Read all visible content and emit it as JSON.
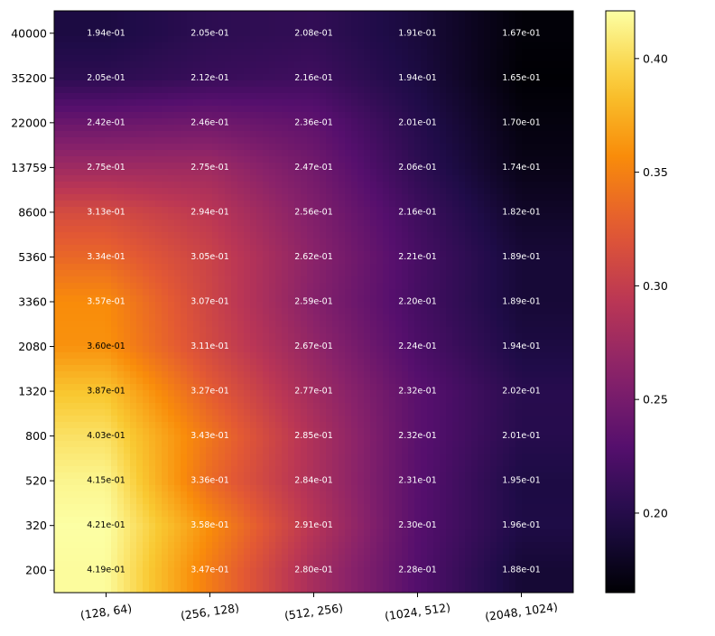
{
  "chart_data": {
    "type": "heatmap",
    "title": "",
    "xlabel": "",
    "ylabel": "",
    "x_categories": [
      "(128, 64)",
      "(256, 128)",
      "(512, 256)",
      "(1024, 512)",
      "(2048, 1024)"
    ],
    "y_categories": [
      "40000",
      "35200",
      "22000",
      "13759",
      "8600",
      "5360",
      "3360",
      "2080",
      "1320",
      "800",
      "520",
      "320",
      "200"
    ],
    "values": [
      [
        0.194,
        0.205,
        0.208,
        0.191,
        0.167
      ],
      [
        0.205,
        0.212,
        0.216,
        0.194,
        0.165
      ],
      [
        0.242,
        0.246,
        0.236,
        0.201,
        0.17
      ],
      [
        0.275,
        0.275,
        0.247,
        0.206,
        0.174
      ],
      [
        0.313,
        0.294,
        0.256,
        0.216,
        0.182
      ],
      [
        0.334,
        0.305,
        0.262,
        0.221,
        0.189
      ],
      [
        0.357,
        0.307,
        0.259,
        0.22,
        0.189
      ],
      [
        0.36,
        0.311,
        0.267,
        0.224,
        0.194
      ],
      [
        0.387,
        0.327,
        0.277,
        0.232,
        0.202
      ],
      [
        0.403,
        0.343,
        0.285,
        0.232,
        0.201
      ],
      [
        0.415,
        0.336,
        0.284,
        0.231,
        0.195
      ],
      [
        0.421,
        0.358,
        0.291,
        0.23,
        0.196
      ],
      [
        0.419,
        0.347,
        0.28,
        0.228,
        0.188
      ]
    ],
    "cell_labels": [
      [
        "1.94e-01",
        "2.05e-01",
        "2.08e-01",
        "1.91e-01",
        "1.67e-01"
      ],
      [
        "2.05e-01",
        "2.12e-01",
        "2.16e-01",
        "1.94e-01",
        "1.65e-01"
      ],
      [
        "2.42e-01",
        "2.46e-01",
        "2.36e-01",
        "2.01e-01",
        "1.70e-01"
      ],
      [
        "2.75e-01",
        "2.75e-01",
        "2.47e-01",
        "2.06e-01",
        "1.74e-01"
      ],
      [
        "3.13e-01",
        "2.94e-01",
        "2.56e-01",
        "2.16e-01",
        "1.82e-01"
      ],
      [
        "3.34e-01",
        "3.05e-01",
        "2.62e-01",
        "2.21e-01",
        "1.89e-01"
      ],
      [
        "3.57e-01",
        "3.07e-01",
        "2.59e-01",
        "2.20e-01",
        "1.89e-01"
      ],
      [
        "3.60e-01",
        "3.11e-01",
        "2.67e-01",
        "2.24e-01",
        "1.94e-01"
      ],
      [
        "3.87e-01",
        "3.27e-01",
        "2.77e-01",
        "2.32e-01",
        "2.02e-01"
      ],
      [
        "4.03e-01",
        "3.43e-01",
        "2.85e-01",
        "2.32e-01",
        "2.01e-01"
      ],
      [
        "4.15e-01",
        "3.36e-01",
        "2.84e-01",
        "2.31e-01",
        "1.95e-01"
      ],
      [
        "4.21e-01",
        "3.58e-01",
        "2.91e-01",
        "2.30e-01",
        "1.96e-01"
      ],
      [
        "4.19e-01",
        "3.47e-01",
        "2.80e-01",
        "2.28e-01",
        "1.88e-01"
      ]
    ],
    "colormap": "inferno",
    "vmin": 0.165,
    "vmax": 0.421,
    "colorbar_ticks": [
      0.2,
      0.25,
      0.3,
      0.35,
      0.4
    ],
    "colorbar_tick_labels": [
      "0.20",
      "0.25",
      "0.30",
      "0.35",
      "0.40"
    ],
    "x_tick_rotation": "slanted",
    "dark_text_threshold": 0.36,
    "light_text_color": "#ffffff",
    "dark_text_color": "#000000",
    "interpolation": "smooth"
  }
}
